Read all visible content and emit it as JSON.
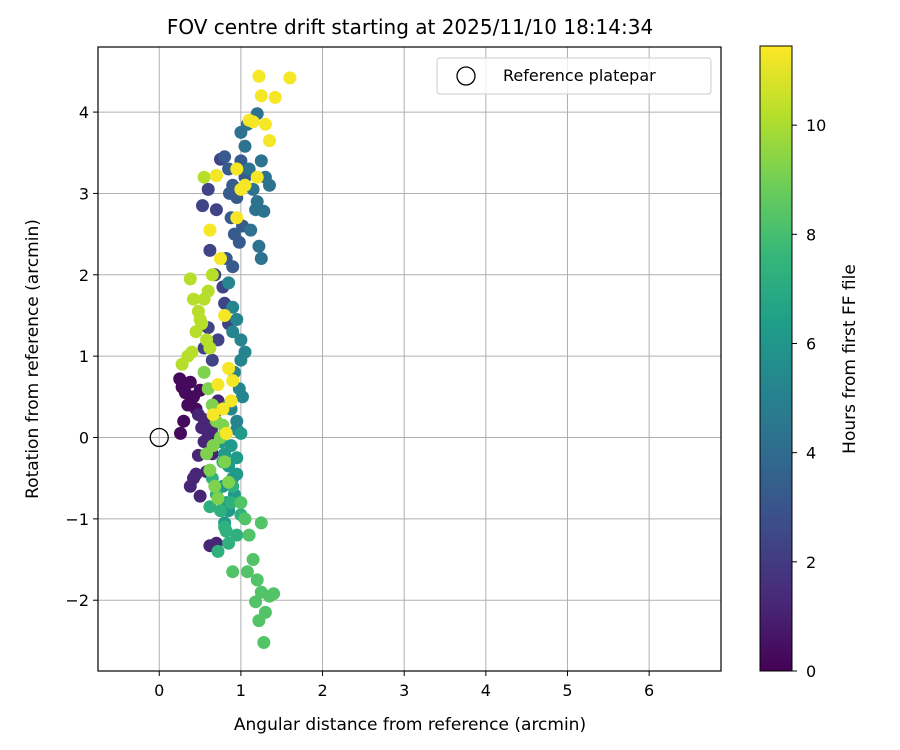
{
  "chart_data": {
    "type": "scatter",
    "title": "FOV centre drift starting at 2025/11/10 18:14:34",
    "xlabel": "Angular distance from reference (arcmin)",
    "ylabel": "Rotation from reference (arcmin)",
    "xlim": [
      -0.75,
      6.88
    ],
    "ylim": [
      -2.87,
      4.8
    ],
    "xticks": [
      "0",
      "1",
      "2",
      "3",
      "4",
      "5",
      "6"
    ],
    "yticks": [
      "−2",
      "−1",
      "0",
      "1",
      "2",
      "3",
      "4"
    ],
    "grid": true,
    "legend": {
      "position": "top-right",
      "entries": [
        "Reference platepar"
      ]
    },
    "reference_point": {
      "x": 0,
      "y": 0,
      "label": "Reference platepar"
    },
    "colorbar": {
      "label": "Hours from first FF file",
      "min": 0,
      "max": 11.45,
      "ticks": [
        "0",
        "2",
        "4",
        "6",
        "8",
        "10"
      ],
      "colormap": [
        "#440154",
        "#482878",
        "#3e4989",
        "#31688e",
        "#26828e",
        "#1f9e89",
        "#35b779",
        "#6ece58",
        "#b5de2b",
        "#fde725"
      ]
    },
    "series": [
      {
        "name": "hour 0",
        "hours": 0.3,
        "x": [
          0.25,
          0.28,
          0.32,
          0.38,
          0.42,
          0.35,
          0.45,
          0.3,
          0.26,
          0.5
        ],
        "y": [
          0.72,
          0.62,
          0.55,
          0.68,
          0.5,
          0.4,
          0.35,
          0.2,
          0.05,
          0.58
        ]
      },
      {
        "name": "hour 1",
        "hours": 1.2,
        "x": [
          0.38,
          0.42,
          0.48,
          0.55,
          0.45,
          0.52,
          0.6,
          0.65,
          0.58,
          0.5,
          0.62,
          0.7,
          0.68,
          0.55,
          0.48,
          0.72,
          0.64
        ],
        "y": [
          -0.6,
          -0.5,
          -0.22,
          -0.05,
          -0.45,
          0.12,
          0.02,
          -0.2,
          -0.42,
          -0.72,
          -1.33,
          -1.3,
          0.3,
          0.22,
          0.28,
          0.45,
          0.1
        ]
      },
      {
        "name": "hour 2",
        "hours": 2.3,
        "x": [
          0.53,
          0.6,
          0.7,
          0.75,
          0.62,
          0.68,
          0.8,
          0.85,
          0.72,
          0.65,
          0.55,
          0.6,
          0.78
        ],
        "y": [
          2.85,
          3.05,
          2.8,
          3.42,
          2.3,
          2.0,
          1.65,
          1.4,
          1.2,
          0.95,
          1.1,
          1.35,
          1.85
        ]
      },
      {
        "name": "hour 3",
        "hours": 3.3,
        "x": [
          0.8,
          0.85,
          0.9,
          0.95,
          1.0,
          0.88,
          0.92,
          1.05,
          0.82,
          0.98,
          0.9,
          1.02,
          0.86
        ],
        "y": [
          3.45,
          3.3,
          3.1,
          2.95,
          3.4,
          2.7,
          2.5,
          3.2,
          2.2,
          2.4,
          2.1,
          2.6,
          3.0
        ]
      },
      {
        "name": "hour 4",
        "hours": 4.3,
        "x": [
          1.0,
          1.05,
          1.1,
          1.15,
          1.2,
          1.25,
          1.3,
          1.35,
          1.18,
          1.22,
          1.28,
          1.12,
          1.08,
          1.2,
          1.25
        ],
        "y": [
          3.75,
          3.58,
          3.3,
          3.05,
          2.9,
          3.4,
          3.2,
          3.1,
          2.8,
          2.35,
          2.78,
          2.55,
          3.85,
          3.98,
          2.2
        ]
      },
      {
        "name": "hour 5",
        "hours": 5.2,
        "x": [
          0.85,
          0.9,
          0.95,
          1.0,
          1.05,
          0.92,
          0.98,
          1.02,
          0.88,
          0.95,
          0.9,
          1.0,
          0.85,
          0.95
        ],
        "y": [
          1.9,
          1.6,
          1.45,
          1.2,
          1.05,
          0.8,
          0.6,
          0.5,
          0.35,
          0.2,
          1.3,
          0.95,
          0.4,
          0.1
        ]
      },
      {
        "name": "hour 6",
        "hours": 6.2,
        "x": [
          0.75,
          0.8,
          0.85,
          0.9,
          0.95,
          1.0,
          0.78,
          0.82,
          0.88,
          0.92,
          0.85,
          0.8,
          0.95
        ],
        "y": [
          -0.05,
          -0.2,
          -0.35,
          -0.5,
          -0.25,
          0.05,
          -0.6,
          -0.8,
          -0.1,
          -0.7,
          -0.9,
          -1.05,
          -0.45
        ]
      },
      {
        "name": "hour 7",
        "hours": 7.3,
        "x": [
          0.65,
          0.7,
          0.75,
          0.8,
          0.85,
          0.9,
          0.95,
          1.0,
          0.72,
          0.78,
          0.88,
          0.82,
          0.62
        ],
        "y": [
          -0.5,
          -0.7,
          -0.9,
          -1.1,
          -1.3,
          -0.6,
          -1.2,
          -0.95,
          -1.4,
          -0.3,
          -0.8,
          -1.15,
          -0.85
        ]
      },
      {
        "name": "hour 8",
        "hours": 8.3,
        "x": [
          1.0,
          1.05,
          1.1,
          1.15,
          1.2,
          1.25,
          1.3,
          1.35,
          1.4,
          1.22,
          1.28,
          1.18,
          1.08,
          0.9,
          1.25
        ],
        "y": [
          -0.8,
          -1.0,
          -1.2,
          -1.5,
          -1.75,
          -1.9,
          -2.15,
          -1.95,
          -1.92,
          -2.25,
          -2.52,
          -2.02,
          -1.65,
          -1.65,
          -1.05
        ]
      },
      {
        "name": "hour 9",
        "hours": 9.2,
        "x": [
          0.55,
          0.6,
          0.65,
          0.7,
          0.75,
          0.58,
          0.62,
          0.68,
          0.72,
          0.8,
          0.85,
          0.78,
          0.66
        ],
        "y": [
          0.8,
          0.6,
          0.4,
          0.2,
          0.0,
          -0.2,
          -0.4,
          -0.6,
          -0.75,
          -0.3,
          -0.55,
          0.15,
          -0.1
        ]
      },
      {
        "name": "hour 10",
        "hours": 10.2,
        "x": [
          0.28,
          0.35,
          0.4,
          0.45,
          0.5,
          0.55,
          0.6,
          0.65,
          0.38,
          0.42,
          0.48,
          0.52,
          0.58,
          0.62,
          0.7,
          0.55
        ],
        "y": [
          0.9,
          1.0,
          1.05,
          1.3,
          1.45,
          1.7,
          1.8,
          2.0,
          1.95,
          1.7,
          1.55,
          1.4,
          1.2,
          1.1,
          3.22,
          3.2
        ]
      },
      {
        "name": "hour 11",
        "hours": 11.3,
        "x": [
          0.62,
          0.7,
          0.75,
          0.8,
          0.85,
          0.9,
          0.95,
          1.0,
          1.05,
          1.1,
          1.15,
          1.2,
          1.25,
          1.3,
          1.35,
          1.42,
          1.6,
          1.22,
          0.95,
          0.88,
          0.78,
          0.66,
          0.72,
          0.82
        ],
        "y": [
          2.55,
          3.22,
          2.2,
          1.5,
          0.85,
          0.7,
          3.3,
          3.05,
          3.1,
          3.9,
          3.88,
          3.2,
          4.2,
          3.85,
          3.65,
          4.18,
          4.42,
          4.44,
          2.7,
          0.45,
          0.35,
          0.28,
          0.65,
          0.05
        ]
      }
    ]
  }
}
